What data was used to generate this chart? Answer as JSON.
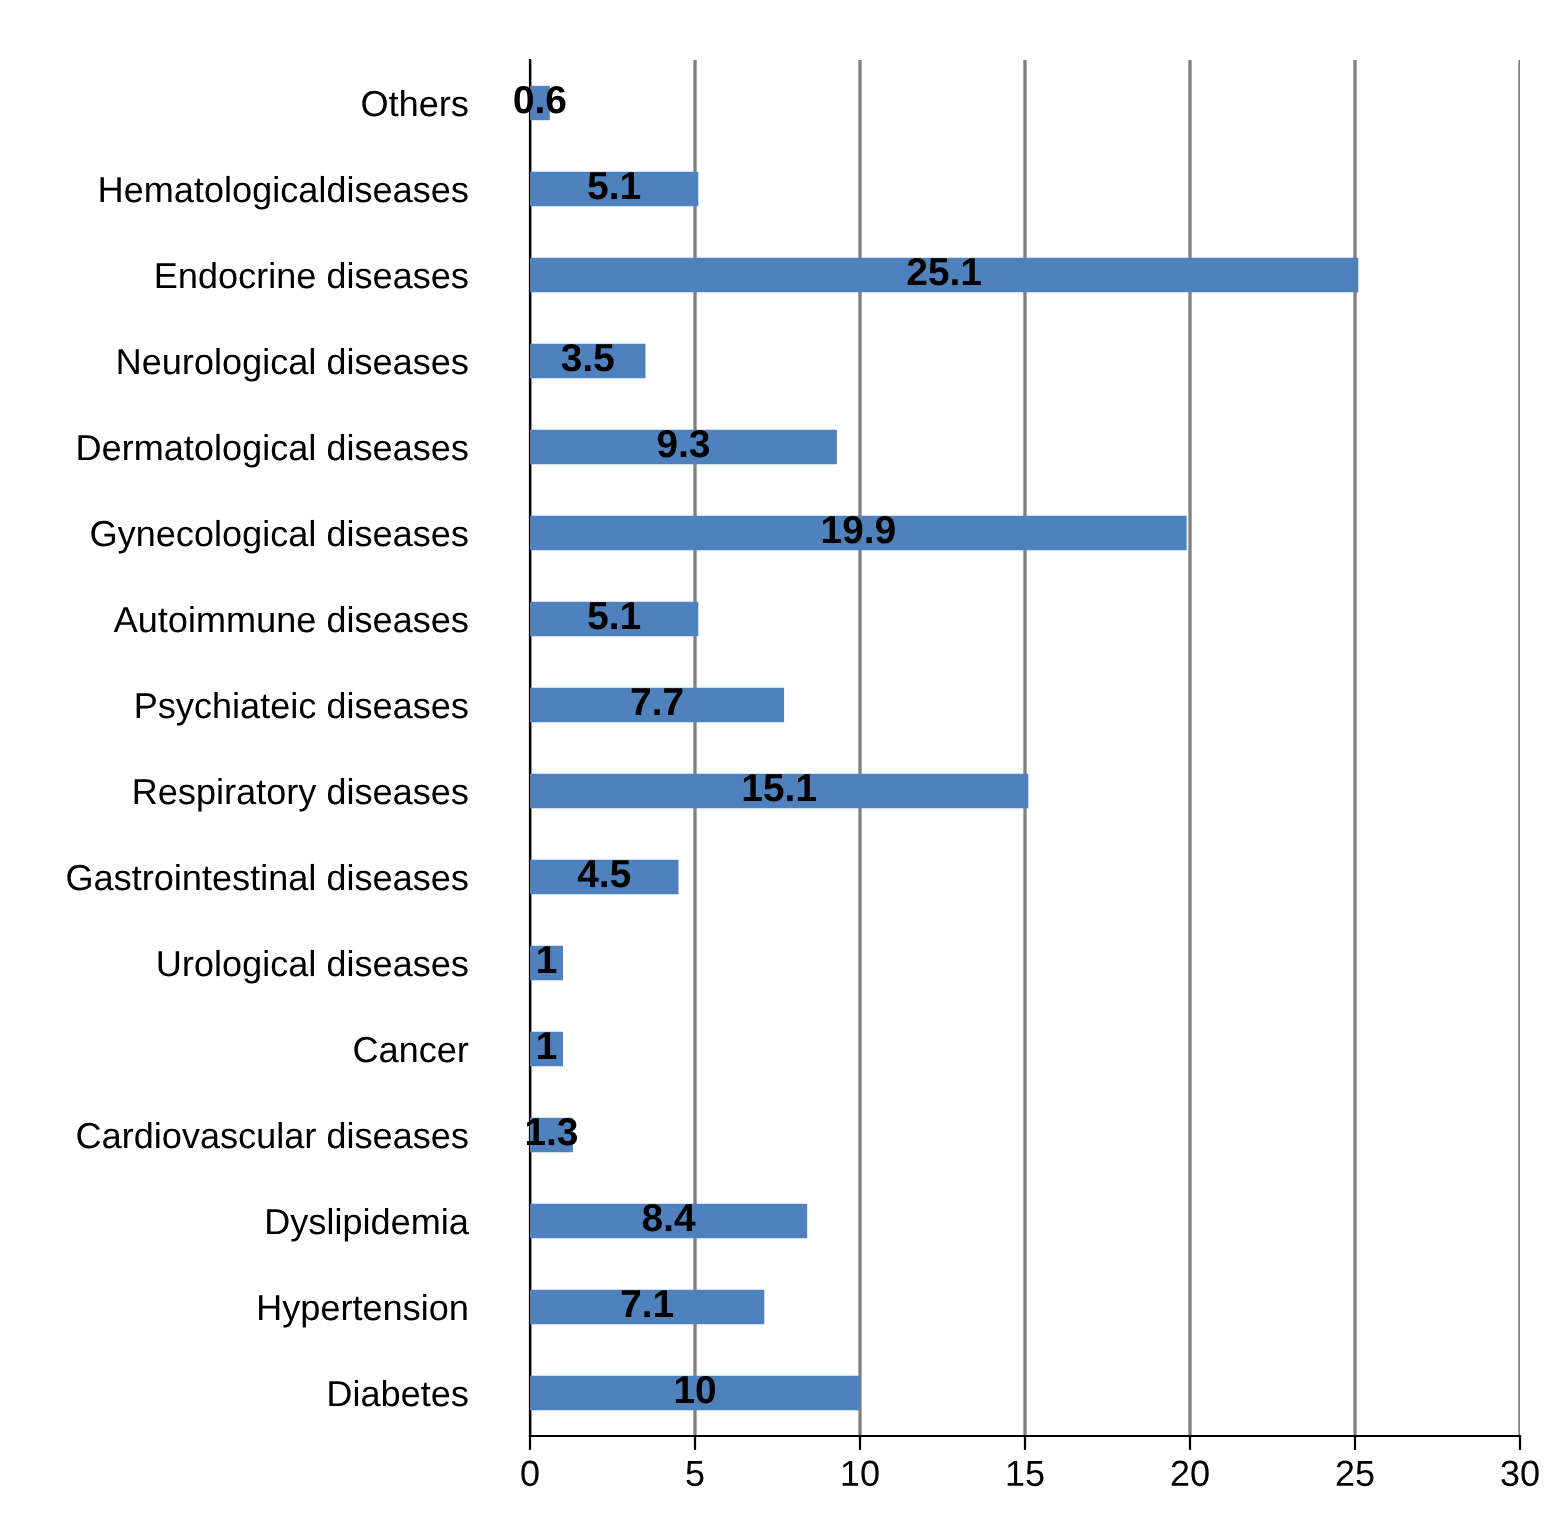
{
  "chart_data": {
    "type": "bar",
    "orientation": "horizontal",
    "categories": [
      "Others",
      "Hematologicaldiseases",
      "Endocrine diseases",
      "Neurological diseases",
      "Dermatological diseases",
      "Gynecological diseases",
      "Autoimmune diseases",
      "Psychiateic diseases",
      "Respiratory diseases",
      "Gastrointestinal diseases",
      "Urological diseases",
      "Cancer",
      "Cardiovascular diseases",
      "Dyslipidemia",
      "Hypertension",
      "Diabetes"
    ],
    "values": [
      0.6,
      5.1,
      25.1,
      3.5,
      9.3,
      19.9,
      5.1,
      7.7,
      15.1,
      4.5,
      1,
      1,
      1.3,
      8.4,
      7.1,
      10
    ],
    "color": "#4f81bd",
    "xlim": [
      0,
      30
    ],
    "xticks": [
      0,
      5,
      10,
      15,
      20,
      25,
      30
    ],
    "grid": "x",
    "data_labels": true
  }
}
